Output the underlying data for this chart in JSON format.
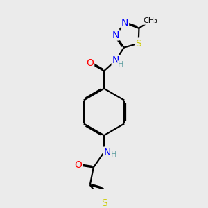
{
  "bg_color": "#ebebeb",
  "atom_colors": {
    "C": "#000000",
    "N": "#0000ff",
    "O": "#ff0000",
    "S": "#cccc00",
    "H": "#5f9ea0"
  },
  "bond_color": "#000000",
  "bond_width": 1.6,
  "font_size_atoms": 10,
  "font_size_small": 8,
  "font_size_methyl": 8
}
